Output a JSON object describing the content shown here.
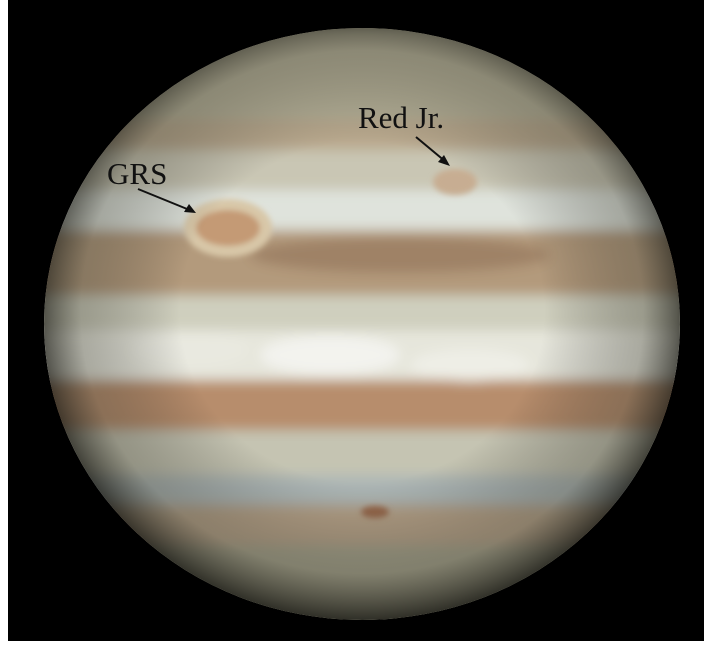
{
  "annotations": {
    "grs": "GRS",
    "red_jr": "Red Jr."
  }
}
